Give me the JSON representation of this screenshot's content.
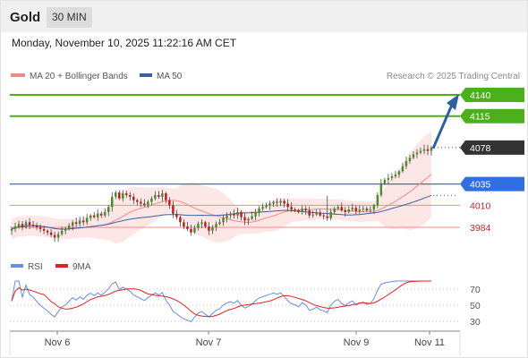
{
  "header": {
    "instrument": "Gold",
    "timeframe": "30 MIN",
    "datetime": "Monday, November 10, 2025 11:22:16 AM CET"
  },
  "legend": {
    "ma20_label": "MA 20 + Bollinger Bands",
    "ma50_label": "MA 50",
    "rsi_label": "RSI",
    "rsi_ma_label": "9MA",
    "copyright": "Research © 2025 Trading Central"
  },
  "colors": {
    "resistance": "#4caf1c",
    "support": "#2f6fdf",
    "ma20": "#f08a8a",
    "ma50": "#3b5fa5",
    "band_fill": "#fde3e3",
    "candle_up": "#4a8c2a",
    "candle_down": "#b22222",
    "arrow": "#2e5f9e",
    "rsi": "#6a8ce0",
    "rsi_ma": "#dd2222",
    "last_price_bg": "#333333",
    "minor_level": "#f08a8a"
  },
  "chart_data": [
    {
      "type": "candlestick",
      "title": "Gold",
      "timeframe": "30 MIN",
      "x_ticks": [
        "Nov 6",
        "Nov 7",
        "Nov 9",
        "Nov 11"
      ],
      "ylim": [
        3955,
        4160
      ],
      "levels": [
        {
          "value": 4140,
          "label": "4140",
          "kind": "resistance"
        },
        {
          "value": 4115,
          "label": "4115",
          "kind": "resistance"
        },
        {
          "value": 4078,
          "label": "4078",
          "kind": "last"
        },
        {
          "value": 4035,
          "label": "4035",
          "kind": "pivot"
        },
        {
          "value": 4010,
          "label": "4010",
          "kind": "support"
        },
        {
          "value": 3984,
          "label": "3984",
          "kind": "support"
        }
      ],
      "forecast_arrow": {
        "from": 4078,
        "to": 4140
      },
      "close": [
        3982,
        3985,
        3988,
        3984,
        3990,
        3987,
        3986,
        3984,
        3982,
        3980,
        3978,
        3975,
        3972,
        3976,
        3980,
        3982,
        3986,
        3990,
        3988,
        3992,
        3990,
        3995,
        3998,
        3996,
        4000,
        3998,
        4002,
        4008,
        4020,
        4025,
        4018,
        4024,
        4022,
        4020,
        4016,
        4014,
        4012,
        4010,
        4014,
        4018,
        4022,
        4020,
        4024,
        4016,
        4010,
        4000,
        3996,
        3990,
        3985,
        3982,
        3978,
        3983,
        3988,
        3990,
        3985,
        3980,
        3984,
        3988,
        3990,
        3995,
        3998,
        4000,
        3998,
        4002,
        3996,
        3992,
        3994,
        3997,
        4002,
        4006,
        4008,
        4010,
        4012,
        4014,
        4013,
        4015,
        4012,
        4008,
        4005,
        4004,
        4002,
        4006,
        4004,
        3998,
        3999,
        4001,
        3998,
        3997,
        3995,
        4002,
        4006,
        4008,
        4004,
        4002,
        4005,
        4007,
        4003,
        4005,
        4006,
        4004,
        4005,
        4010,
        4022,
        4036,
        4040,
        4042,
        4044,
        4046,
        4050,
        4056,
        4062,
        4066,
        4070,
        4072,
        4074,
        4076,
        4074,
        4078
      ]
    },
    {
      "type": "line",
      "title": "RSI",
      "series": [
        {
          "name": "RSI"
        },
        {
          "name": "9MA"
        }
      ],
      "y_ticks": [
        70,
        50,
        30
      ]
    }
  ]
}
